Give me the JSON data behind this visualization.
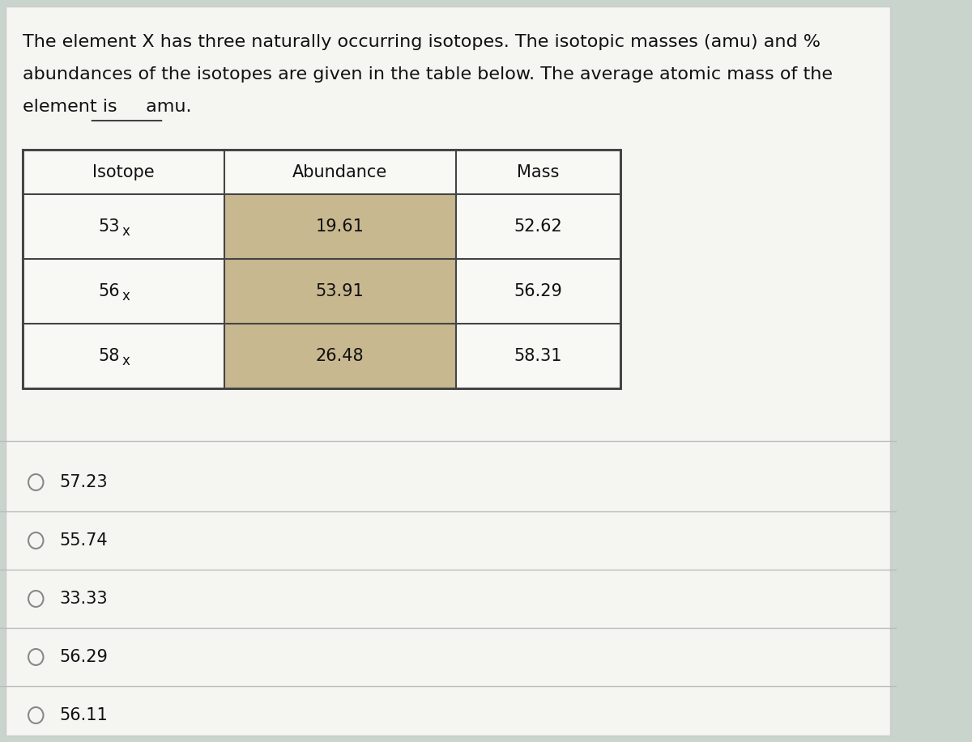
{
  "title_line1": "The element X has three naturally occurring isotopes. The isotopic masses (amu) and %",
  "title_line2": "abundances of the isotopes are given in the table below. The average atomic mass of the",
  "title_line3_pre": "element is ",
  "title_line3_dash": "________",
  "title_line3_post": " amu.",
  "table_headers": [
    "Isotope",
    "Abundance",
    "Mass"
  ],
  "table_rows": [
    [
      "53",
      "x",
      "19.61",
      "52.62"
    ],
    [
      "56",
      "x",
      "53.91",
      "56.29"
    ],
    [
      "58",
      "x",
      "26.48",
      "58.31"
    ]
  ],
  "answer_choices": [
    "57.23",
    "55.74",
    "33.33",
    "56.29",
    "56.11"
  ],
  "bg_color": "#cfd8d0",
  "table_bg": "#f0f0ee",
  "table_abund_col_bg": "#d8c8b0",
  "table_border_color": "#444444",
  "divider_color": "#bbbbbb",
  "answer_section_bg": "#dde5e0",
  "font_size_title": 16,
  "font_size_table_header": 15,
  "font_size_table_body": 15,
  "font_size_answer": 15,
  "fig_width": 12.0,
  "fig_height": 9.17
}
